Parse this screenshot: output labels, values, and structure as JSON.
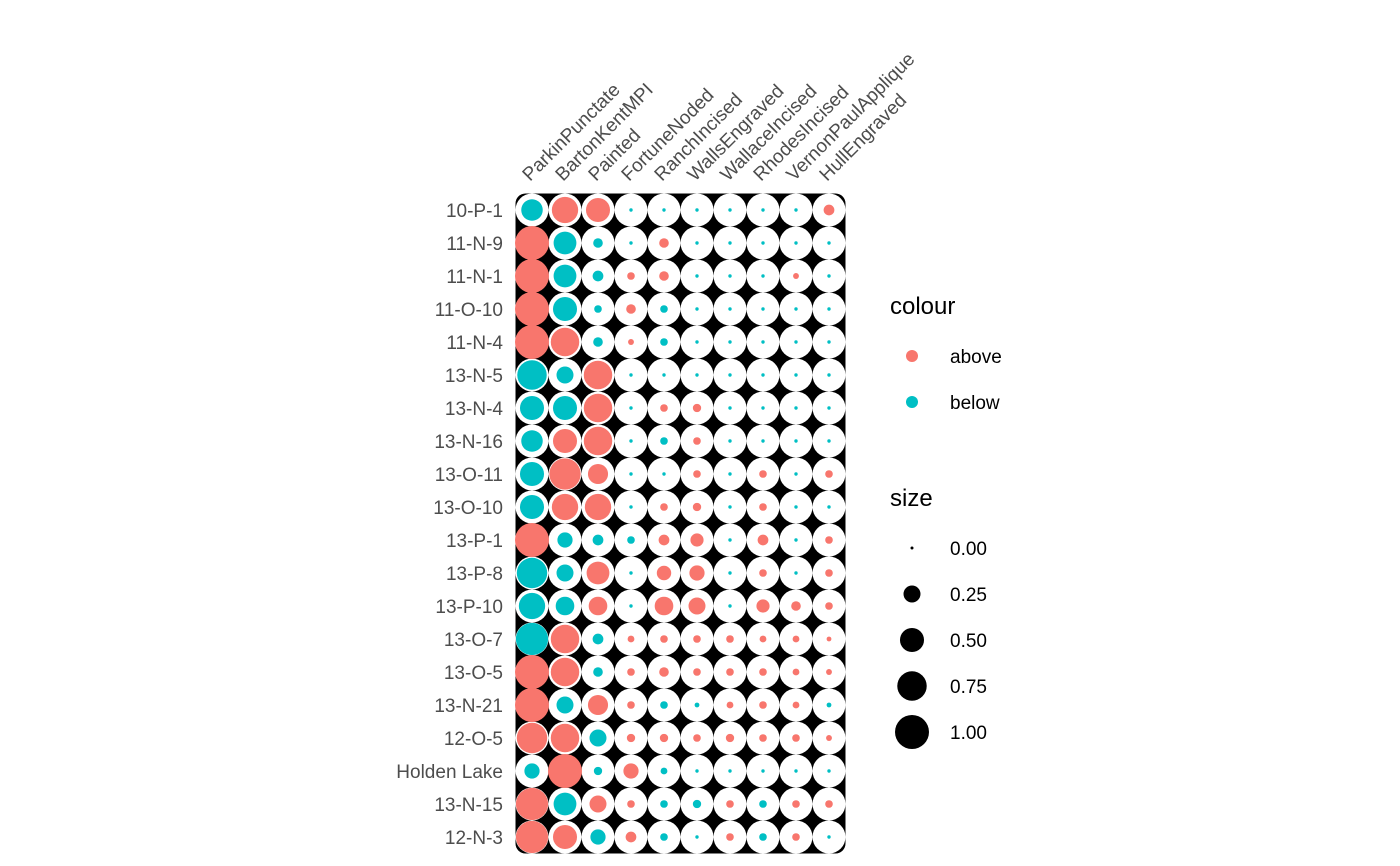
{
  "chart_data": {
    "type": "scatter",
    "description_type": "seriation bubble plot",
    "columns": [
      "ParkinPunctate",
      "BartonKentMPI",
      "Painted",
      "FortuneNoded",
      "RanchIncised",
      "WallsEngraved",
      "WallaceIncised",
      "RhodesIncised",
      "VernonPaulApplique",
      "HullEngraved"
    ],
    "rows": [
      "10-P-1",
      "11-N-9",
      "11-N-1",
      "11-O-10",
      "11-N-4",
      "13-N-5",
      "13-N-4",
      "13-N-16",
      "13-O-11",
      "13-O-10",
      "13-P-1",
      "13-P-8",
      "13-P-10",
      "13-O-7",
      "13-O-5",
      "13-N-21",
      "12-O-5",
      "Holden Lake",
      "13-N-15",
      "12-N-3"
    ],
    "size": [
      [
        0.4,
        0.6,
        0.5,
        0.01,
        0.01,
        0.01,
        0.01,
        0.01,
        0.01,
        0.1
      ],
      [
        1.0,
        0.45,
        0.08,
        0.01,
        0.08,
        0.01,
        0.01,
        0.01,
        0.01,
        0.01
      ],
      [
        1.0,
        0.45,
        0.1,
        0.05,
        0.08,
        0.01,
        0.01,
        0.01,
        0.03,
        0.01
      ],
      [
        1.0,
        0.5,
        0.05,
        0.08,
        0.05,
        0.01,
        0.01,
        0.01,
        0.01,
        0.01
      ],
      [
        1.0,
        0.7,
        0.08,
        0.03,
        0.05,
        0.01,
        0.01,
        0.01,
        0.01,
        0.01
      ],
      [
        0.75,
        0.25,
        0.7,
        0.01,
        0.01,
        0.01,
        0.01,
        0.01,
        0.01,
        0.01
      ],
      [
        0.5,
        0.5,
        0.7,
        0.01,
        0.05,
        0.06,
        0.01,
        0.01,
        0.01,
        0.01
      ],
      [
        0.4,
        0.5,
        0.7,
        0.01,
        0.05,
        0.05,
        0.01,
        0.01,
        0.01,
        0.01
      ],
      [
        0.5,
        0.85,
        0.35,
        0.01,
        0.01,
        0.05,
        0.01,
        0.05,
        0.01,
        0.05
      ],
      [
        0.5,
        0.6,
        0.6,
        0.01,
        0.05,
        0.06,
        0.01,
        0.05,
        0.01,
        0.01
      ],
      [
        1.0,
        0.2,
        0.1,
        0.05,
        0.1,
        0.15,
        0.01,
        0.1,
        0.01,
        0.05
      ],
      [
        0.8,
        0.25,
        0.45,
        0.01,
        0.18,
        0.2,
        0.01,
        0.05,
        0.01,
        0.05
      ],
      [
        0.6,
        0.3,
        0.3,
        0.01,
        0.3,
        0.25,
        0.01,
        0.15,
        0.08,
        0.05
      ],
      [
        0.9,
        0.7,
        0.1,
        0.04,
        0.05,
        0.05,
        0.05,
        0.04,
        0.04,
        0.02
      ],
      [
        1.0,
        0.7,
        0.08,
        0.05,
        0.08,
        0.05,
        0.05,
        0.05,
        0.04,
        0.03
      ],
      [
        1.0,
        0.25,
        0.35,
        0.05,
        0.05,
        0.02,
        0.04,
        0.05,
        0.04,
        0.02
      ],
      [
        0.8,
        0.7,
        0.25,
        0.06,
        0.06,
        0.05,
        0.06,
        0.05,
        0.05,
        0.03
      ],
      [
        0.2,
        1.0,
        0.06,
        0.2,
        0.04,
        0.01,
        0.01,
        0.01,
        0.01,
        0.01
      ],
      [
        0.9,
        0.45,
        0.25,
        0.05,
        0.05,
        0.06,
        0.05,
        0.05,
        0.05,
        0.05
      ],
      [
        0.9,
        0.5,
        0.2,
        0.1,
        0.05,
        0.01,
        0.05,
        0.05,
        0.05,
        0.01
      ]
    ],
    "colour": [
      [
        "below",
        "above",
        "above",
        "below",
        "below",
        "below",
        "below",
        "below",
        "below",
        "above"
      ],
      [
        "above",
        "below",
        "below",
        "below",
        "above",
        "below",
        "below",
        "below",
        "below",
        "below"
      ],
      [
        "above",
        "below",
        "below",
        "above",
        "above",
        "below",
        "below",
        "below",
        "above",
        "below"
      ],
      [
        "above",
        "below",
        "below",
        "above",
        "below",
        "below",
        "below",
        "below",
        "below",
        "below"
      ],
      [
        "above",
        "above",
        "below",
        "above",
        "below",
        "below",
        "below",
        "below",
        "below",
        "below"
      ],
      [
        "below",
        "below",
        "above",
        "below",
        "below",
        "below",
        "below",
        "below",
        "below",
        "below"
      ],
      [
        "below",
        "below",
        "above",
        "below",
        "above",
        "above",
        "below",
        "below",
        "below",
        "below"
      ],
      [
        "below",
        "above",
        "above",
        "below",
        "below",
        "above",
        "below",
        "below",
        "below",
        "below"
      ],
      [
        "below",
        "above",
        "above",
        "below",
        "below",
        "above",
        "below",
        "above",
        "below",
        "above"
      ],
      [
        "below",
        "above",
        "above",
        "below",
        "above",
        "above",
        "below",
        "above",
        "below",
        "below"
      ],
      [
        "above",
        "below",
        "below",
        "below",
        "above",
        "above",
        "below",
        "above",
        "below",
        "above"
      ],
      [
        "below",
        "below",
        "above",
        "below",
        "above",
        "above",
        "below",
        "above",
        "below",
        "above"
      ],
      [
        "below",
        "below",
        "above",
        "below",
        "above",
        "above",
        "below",
        "above",
        "above",
        "above"
      ],
      [
        "below",
        "above",
        "below",
        "above",
        "above",
        "above",
        "above",
        "above",
        "above",
        "above"
      ],
      [
        "above",
        "above",
        "below",
        "above",
        "above",
        "above",
        "above",
        "above",
        "above",
        "above"
      ],
      [
        "above",
        "below",
        "above",
        "above",
        "below",
        "below",
        "above",
        "above",
        "above",
        "below"
      ],
      [
        "above",
        "above",
        "below",
        "above",
        "above",
        "above",
        "above",
        "above",
        "above",
        "above"
      ],
      [
        "below",
        "above",
        "below",
        "above",
        "below",
        "below",
        "below",
        "below",
        "below",
        "below"
      ],
      [
        "above",
        "below",
        "above",
        "above",
        "below",
        "below",
        "above",
        "below",
        "above",
        "above"
      ],
      [
        "above",
        "above",
        "below",
        "above",
        "below",
        "below",
        "above",
        "below",
        "above",
        "below"
      ]
    ],
    "colors": {
      "above": "#F8766D",
      "below": "#00BFC4"
    },
    "legend": {
      "position": "right",
      "colour": {
        "title": "colour",
        "entries": [
          "above",
          "below"
        ]
      },
      "size": {
        "title": "size",
        "entries": [
          "0.00",
          "0.25",
          "0.50",
          "0.75",
          "1.00"
        ],
        "values": [
          0.0,
          0.25,
          0.5,
          0.75,
          1.0
        ]
      }
    },
    "grid": false
  }
}
